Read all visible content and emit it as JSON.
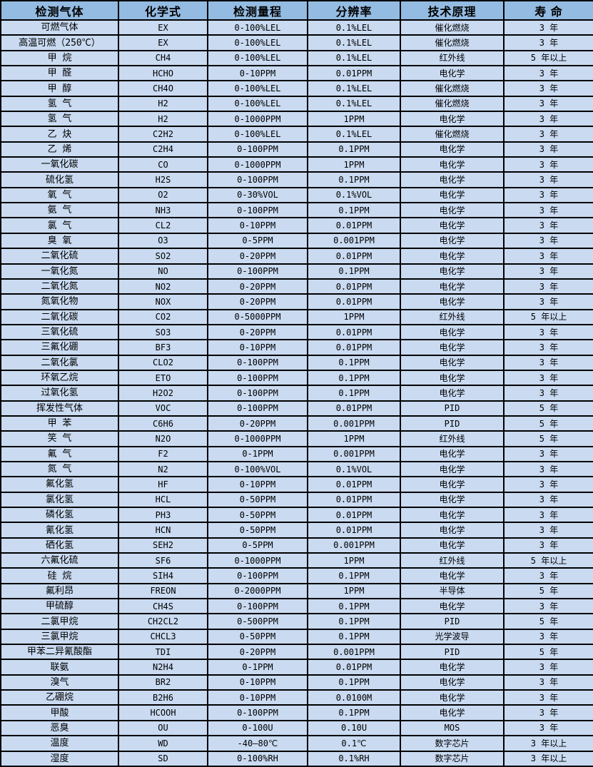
{
  "colors": {
    "header_bg": "#94bbe2",
    "row_bg": "#c9daf1",
    "border": "#000000",
    "text": "#000000"
  },
  "table": {
    "columns": [
      {
        "key": "gas",
        "label": "检测气体"
      },
      {
        "key": "formula",
        "label": "化学式"
      },
      {
        "key": "range",
        "label": "检测量程"
      },
      {
        "key": "resolution",
        "label": "分辨率"
      },
      {
        "key": "principle",
        "label": "技术原理"
      },
      {
        "key": "lifespan",
        "label": "寿 命"
      }
    ],
    "rows": [
      [
        "可燃气体",
        "EX",
        "0-100%LEL",
        "0.1%LEL",
        "催化燃烧",
        "3 年"
      ],
      [
        "高温可燃（250℃）",
        "EX",
        "0-100%LEL",
        "0.1%LEL",
        "催化燃烧",
        "3 年"
      ],
      [
        "甲 烷",
        "CH4",
        "0-100%LEL",
        "0.1%LEL",
        "红外线",
        "5 年以上"
      ],
      [
        "甲 醛",
        "HCHO",
        "0-10PPM",
        "0.01PPM",
        "电化学",
        "3 年"
      ],
      [
        "甲 醇",
        "CH4O",
        "0-100%LEL",
        "0.1%LEL",
        "催化燃烧",
        "3 年"
      ],
      [
        "氢 气",
        "H2",
        "0-100%LEL",
        "0.1%LEL",
        "催化燃烧",
        "3 年"
      ],
      [
        "氢 气",
        "H2",
        "0-1000PPM",
        "1PPM",
        "电化学",
        "3 年"
      ],
      [
        "乙 炔",
        "C2H2",
        "0-100%LEL",
        "0.1%LEL",
        "催化燃烧",
        "3 年"
      ],
      [
        "乙 烯",
        "C2H4",
        "0-100PPM",
        "0.1PPM",
        "电化学",
        "3 年"
      ],
      [
        "一氧化碳",
        "CO",
        "0-1000PPM",
        "1PPM",
        "电化学",
        "3 年"
      ],
      [
        "硫化氢",
        "H2S",
        "0-100PPM",
        "0.1PPM",
        "电化学",
        "3 年"
      ],
      [
        "氧 气",
        "O2",
        "0-30%VOL",
        "0.1%VOL",
        "电化学",
        "3 年"
      ],
      [
        "氨 气",
        "NH3",
        "0-100PPM",
        "0.1PPM",
        "电化学",
        "3 年"
      ],
      [
        "氯 气",
        "CL2",
        "0-10PPM",
        "0.01PPM",
        "电化学",
        "3 年"
      ],
      [
        "臭 氧",
        "O3",
        "0-5PPM",
        "0.001PPM",
        "电化学",
        "3 年"
      ],
      [
        "二氧化硫",
        "SO2",
        "0-20PPM",
        "0.01PPM",
        "电化学",
        "3 年"
      ],
      [
        "一氧化氮",
        "NO",
        "0-100PPM",
        "0.1PPM",
        "电化学",
        "3 年"
      ],
      [
        "二氧化氮",
        "NO2",
        "0-20PPM",
        "0.01PPM",
        "电化学",
        "3 年"
      ],
      [
        "氮氧化物",
        "NOX",
        "0-20PPM",
        "0.01PPM",
        "电化学",
        "3 年"
      ],
      [
        "二氧化碳",
        "CO2",
        "0-5000PPM",
        "1PPM",
        "红外线",
        "5 年以上"
      ],
      [
        "三氧化硫",
        "SO3",
        "0-20PPM",
        "0.01PPM",
        "电化学",
        "3 年"
      ],
      [
        "三氟化硼",
        "BF3",
        "0-10PPM",
        "0.01PPM",
        "电化学",
        "3 年"
      ],
      [
        "二氧化氯",
        "CLO2",
        "0-100PPM",
        "0.1PPM",
        "电化学",
        "3 年"
      ],
      [
        "环氧乙烷",
        "ETO",
        "0-100PPM",
        "0.1PPM",
        "电化学",
        "3 年"
      ],
      [
        "过氧化氢",
        "H2O2",
        "0-100PPM",
        "0.1PPM",
        "电化学",
        "3 年"
      ],
      [
        "挥发性气体",
        "VOC",
        "0-100PPM",
        "0.01PPM",
        "PID",
        "5 年"
      ],
      [
        "甲 苯",
        "C6H6",
        "0-20PPM",
        "0.001PPM",
        "PID",
        "5 年"
      ],
      [
        "笑 气",
        "N2O",
        "0-1000PPM",
        "1PPM",
        "红外线",
        "5 年"
      ],
      [
        "氟 气",
        "F2",
        "0-1PPM",
        "0.001PPM",
        "电化学",
        "3 年"
      ],
      [
        "氮 气",
        "N2",
        "0-100%VOL",
        "0.1%VOL",
        "电化学",
        "3 年"
      ],
      [
        "氟化氢",
        "HF",
        "0-10PPM",
        "0.01PPM",
        "电化学",
        "3 年"
      ],
      [
        "氯化氢",
        "HCL",
        "0-50PPM",
        "0.01PPM",
        "电化学",
        "3 年"
      ],
      [
        "磷化氢",
        "PH3",
        "0-50PPM",
        "0.01PPM",
        "电化学",
        "3 年"
      ],
      [
        "氰化氢",
        "HCN",
        "0-50PPM",
        "0.01PPM",
        "电化学",
        "3 年"
      ],
      [
        "硒化氢",
        "SEH2",
        "0-5PPM",
        "0.001PPM",
        "电化学",
        "3 年"
      ],
      [
        "六氟化硫",
        "SF6",
        "0-1000PPM",
        "1PPM",
        "红外线",
        "5 年以上"
      ],
      [
        "硅 烷",
        "SIH4",
        "0-100PPM",
        "0.1PPM",
        "电化学",
        "3 年"
      ],
      [
        "氟利昂",
        "FREON",
        "0-2000PPM",
        "1PPM",
        "半导体",
        "5 年"
      ],
      [
        "甲硫醇",
        "CH4S",
        "0-100PPM",
        "0.1PPM",
        "电化学",
        "3 年"
      ],
      [
        "二氯甲烷",
        "CH2CL2",
        "0-500PPM",
        "0.1PPM",
        "PID",
        "5 年"
      ],
      [
        "三氯甲烷",
        "CHCL3",
        "0-50PPM",
        "0.1PPM",
        "光学波导",
        "3 年"
      ],
      [
        "甲苯二异氰酸酯",
        "TDI",
        "0-20PPM",
        "0.001PPM",
        "PID",
        "5 年"
      ],
      [
        "联氨",
        "N2H4",
        "0-1PPM",
        "0.01PPM",
        "电化学",
        "3 年"
      ],
      [
        "溴气",
        "BR2",
        "0-10PPM",
        "0.1PPM",
        "电化学",
        "3 年"
      ],
      [
        "乙硼烷",
        "B2H6",
        "0-10PPM",
        "0.0100M",
        "电化学",
        "3 年"
      ],
      [
        "甲酸",
        "HCOOH",
        "0-100PPM",
        "0.1PPM",
        "电化学",
        "3 年"
      ],
      [
        "恶臭",
        "OU",
        "0-100U",
        "0.10U",
        "MOS",
        "3 年"
      ],
      [
        "温度",
        "WD",
        "-40—80℃",
        "0.1℃",
        "数字芯片",
        "3 年以上"
      ],
      [
        "湿度",
        "SD",
        "0-100%RH",
        "0.1%RH",
        "数字芯片",
        "3 年以上"
      ]
    ]
  }
}
